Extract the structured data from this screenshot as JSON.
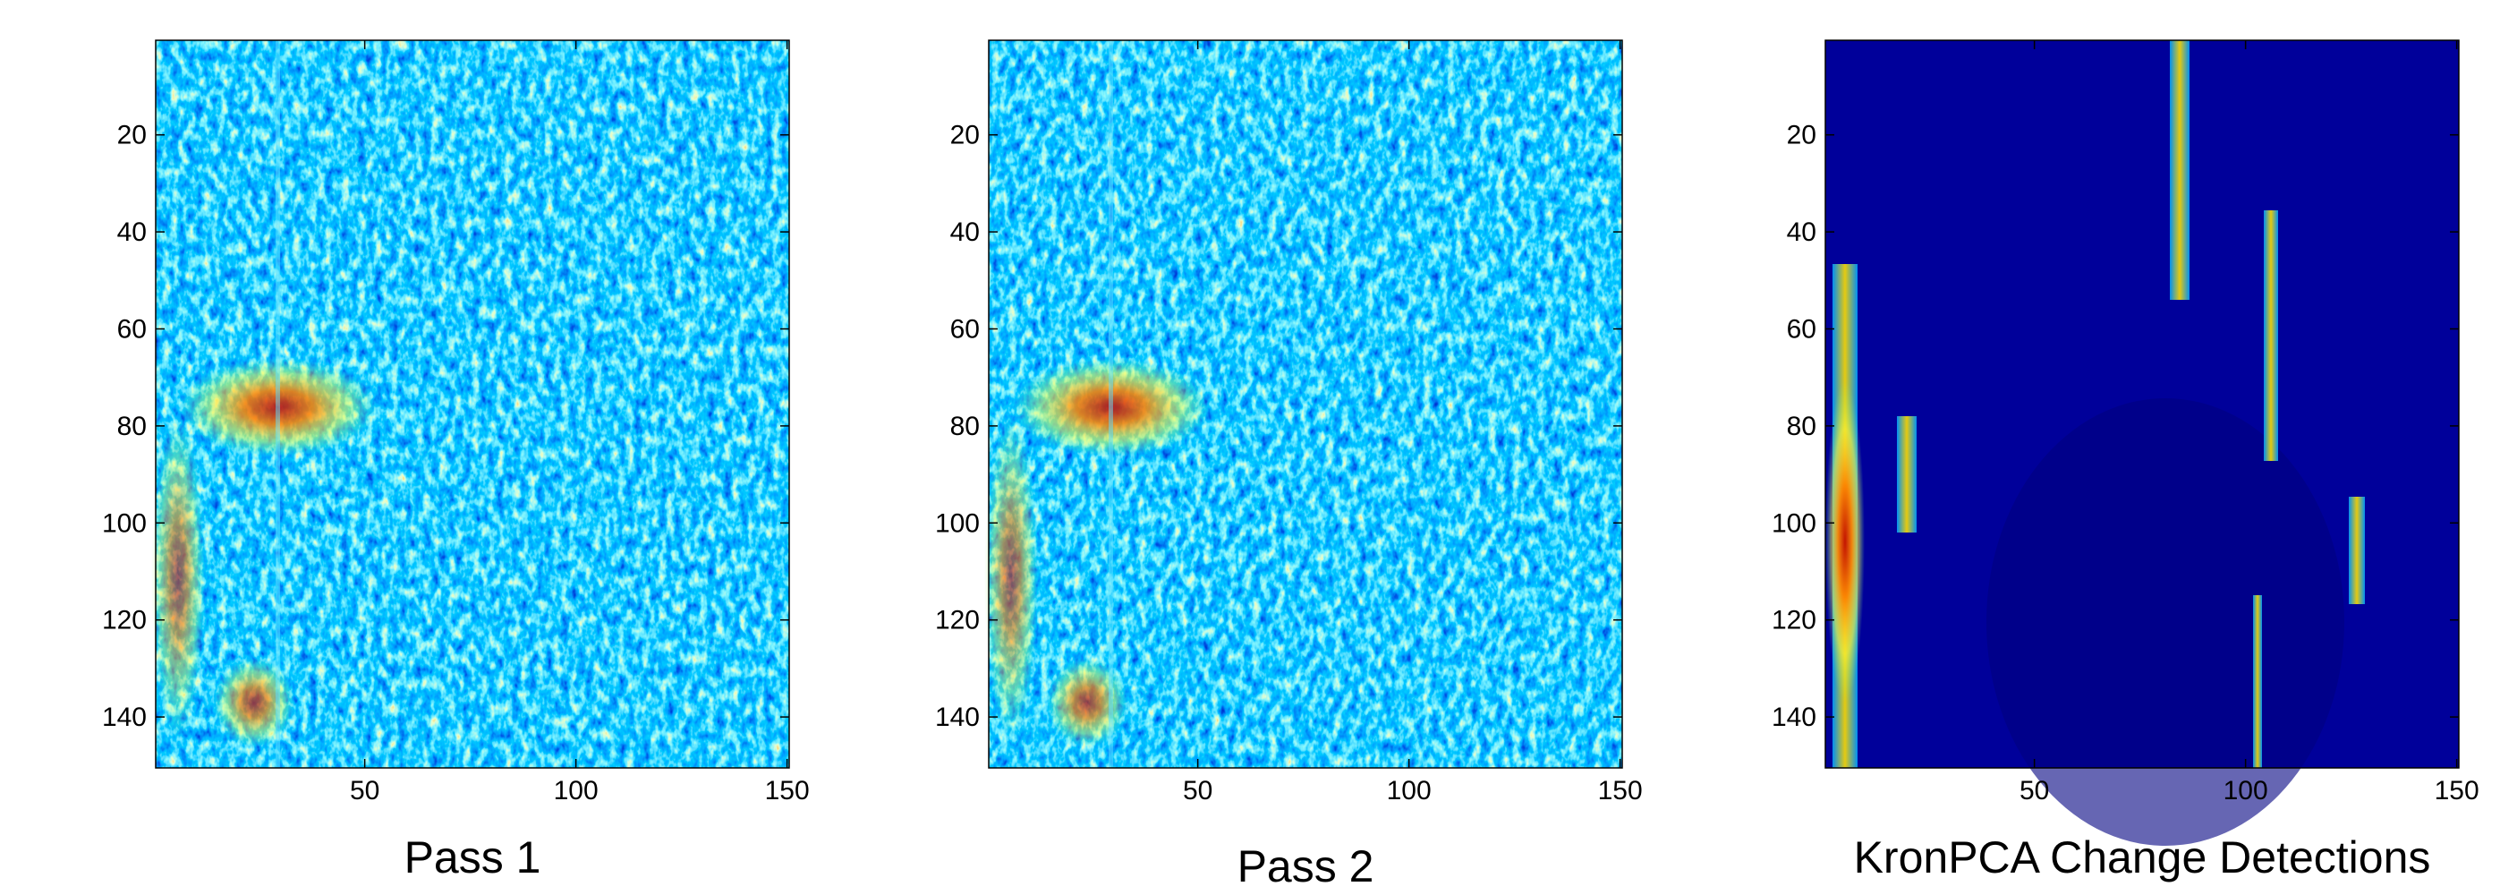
{
  "chart_data": [
    {
      "type": "image",
      "xlabel": "Pass 1",
      "xlim": [
        0.5,
        150.5
      ],
      "ylim": [
        150.5,
        0.5
      ],
      "xticks": [
        50,
        100,
        150
      ],
      "yticks": [
        20,
        40,
        60,
        80,
        100,
        120,
        140
      ]
    },
    {
      "type": "image",
      "xlabel": "Pass 2",
      "xlim": [
        0.5,
        150.5
      ],
      "ylim": [
        150.5,
        0.5
      ],
      "xticks": [
        50,
        100,
        150
      ],
      "yticks": [
        20,
        40,
        60,
        80,
        100,
        120,
        140
      ]
    },
    {
      "type": "detections",
      "xlabel": "KronPCA Change Detections",
      "xlim": [
        0.5,
        150.5
      ],
      "ylim": [
        150.5,
        0.5
      ],
      "xticks": [
        50,
        100,
        150
      ],
      "yticks": [
        20,
        40,
        60,
        80,
        100,
        120,
        140
      ]
    }
  ]
}
